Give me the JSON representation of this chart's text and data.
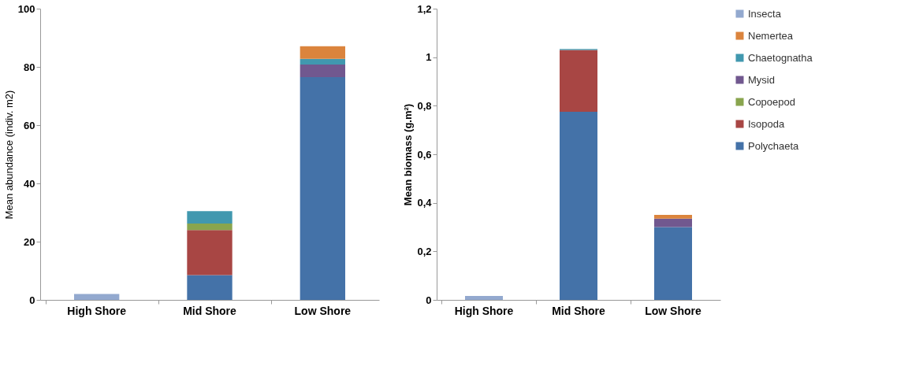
{
  "chart_data": [
    {
      "type": "bar",
      "stacked": true,
      "ylabel": "Mean abundance  (indiv. m2)",
      "categories": [
        "High Shore",
        "Mid Shore",
        "Low Shore"
      ],
      "ylim": [
        0,
        100
      ],
      "yticks": [
        0,
        20,
        40,
        60,
        80,
        100
      ],
      "grid": false,
      "legend": false,
      "series": [
        {
          "color": "#4472a8",
          "values": [
            null,
            8.5,
            76.5
          ]
        },
        {
          "color": "#a84644",
          "values": [
            null,
            15.5,
            null
          ]
        },
        {
          "color": "#89a54e",
          "values": [
            null,
            2.2,
            null
          ]
        },
        {
          "color": "#71588f",
          "values": [
            null,
            null,
            4.3
          ]
        },
        {
          "color": "#4198af",
          "values": [
            null,
            4.3,
            2
          ]
        },
        {
          "color": "#db843d",
          "values": [
            null,
            null,
            4.3
          ]
        },
        {
          "color": "#93a9cf",
          "values": [
            2,
            null,
            null
          ]
        }
      ]
    },
    {
      "type": "bar",
      "stacked": true,
      "ylabel": "Mean biomass (g.m²)",
      "categories": [
        "High Shore",
        "Mid Shore",
        "Low Shore"
      ],
      "ylim": [
        0,
        1.2
      ],
      "yticks": [
        0,
        {
          "value": 0.2,
          "label": "0,2"
        },
        {
          "value": 0.4,
          "label": "0,4"
        },
        {
          "value": 0.6,
          "label": "0,6"
        },
        {
          "value": 0.8,
          "label": "0,8"
        },
        1,
        {
          "value": 1.2,
          "label": "1,2"
        }
      ],
      "grid": false,
      "legend": "top right",
      "series": [
        {
          "name": "Polychaeta",
          "color": "#4472a8",
          "values": [
            null,
            0.775,
            0.3
          ]
        },
        {
          "name": "Isopoda",
          "color": "#a84644",
          "values": [
            null,
            0.255,
            null
          ]
        },
        {
          "name": "Copoepod",
          "color": "#89a54e",
          "values": [
            null,
            null,
            null
          ]
        },
        {
          "name": "Mysid",
          "color": "#71588f",
          "values": [
            null,
            null,
            0.035
          ]
        },
        {
          "name": "Chaetognatha",
          "color": "#4198af",
          "values": [
            null,
            0.004,
            null
          ]
        },
        {
          "name": "Nemertea",
          "color": "#db843d",
          "values": [
            null,
            null,
            0.015
          ]
        },
        {
          "name": "Insecta",
          "color": "#93a9cf",
          "values": [
            0.016,
            null,
            null
          ]
        }
      ]
    }
  ]
}
